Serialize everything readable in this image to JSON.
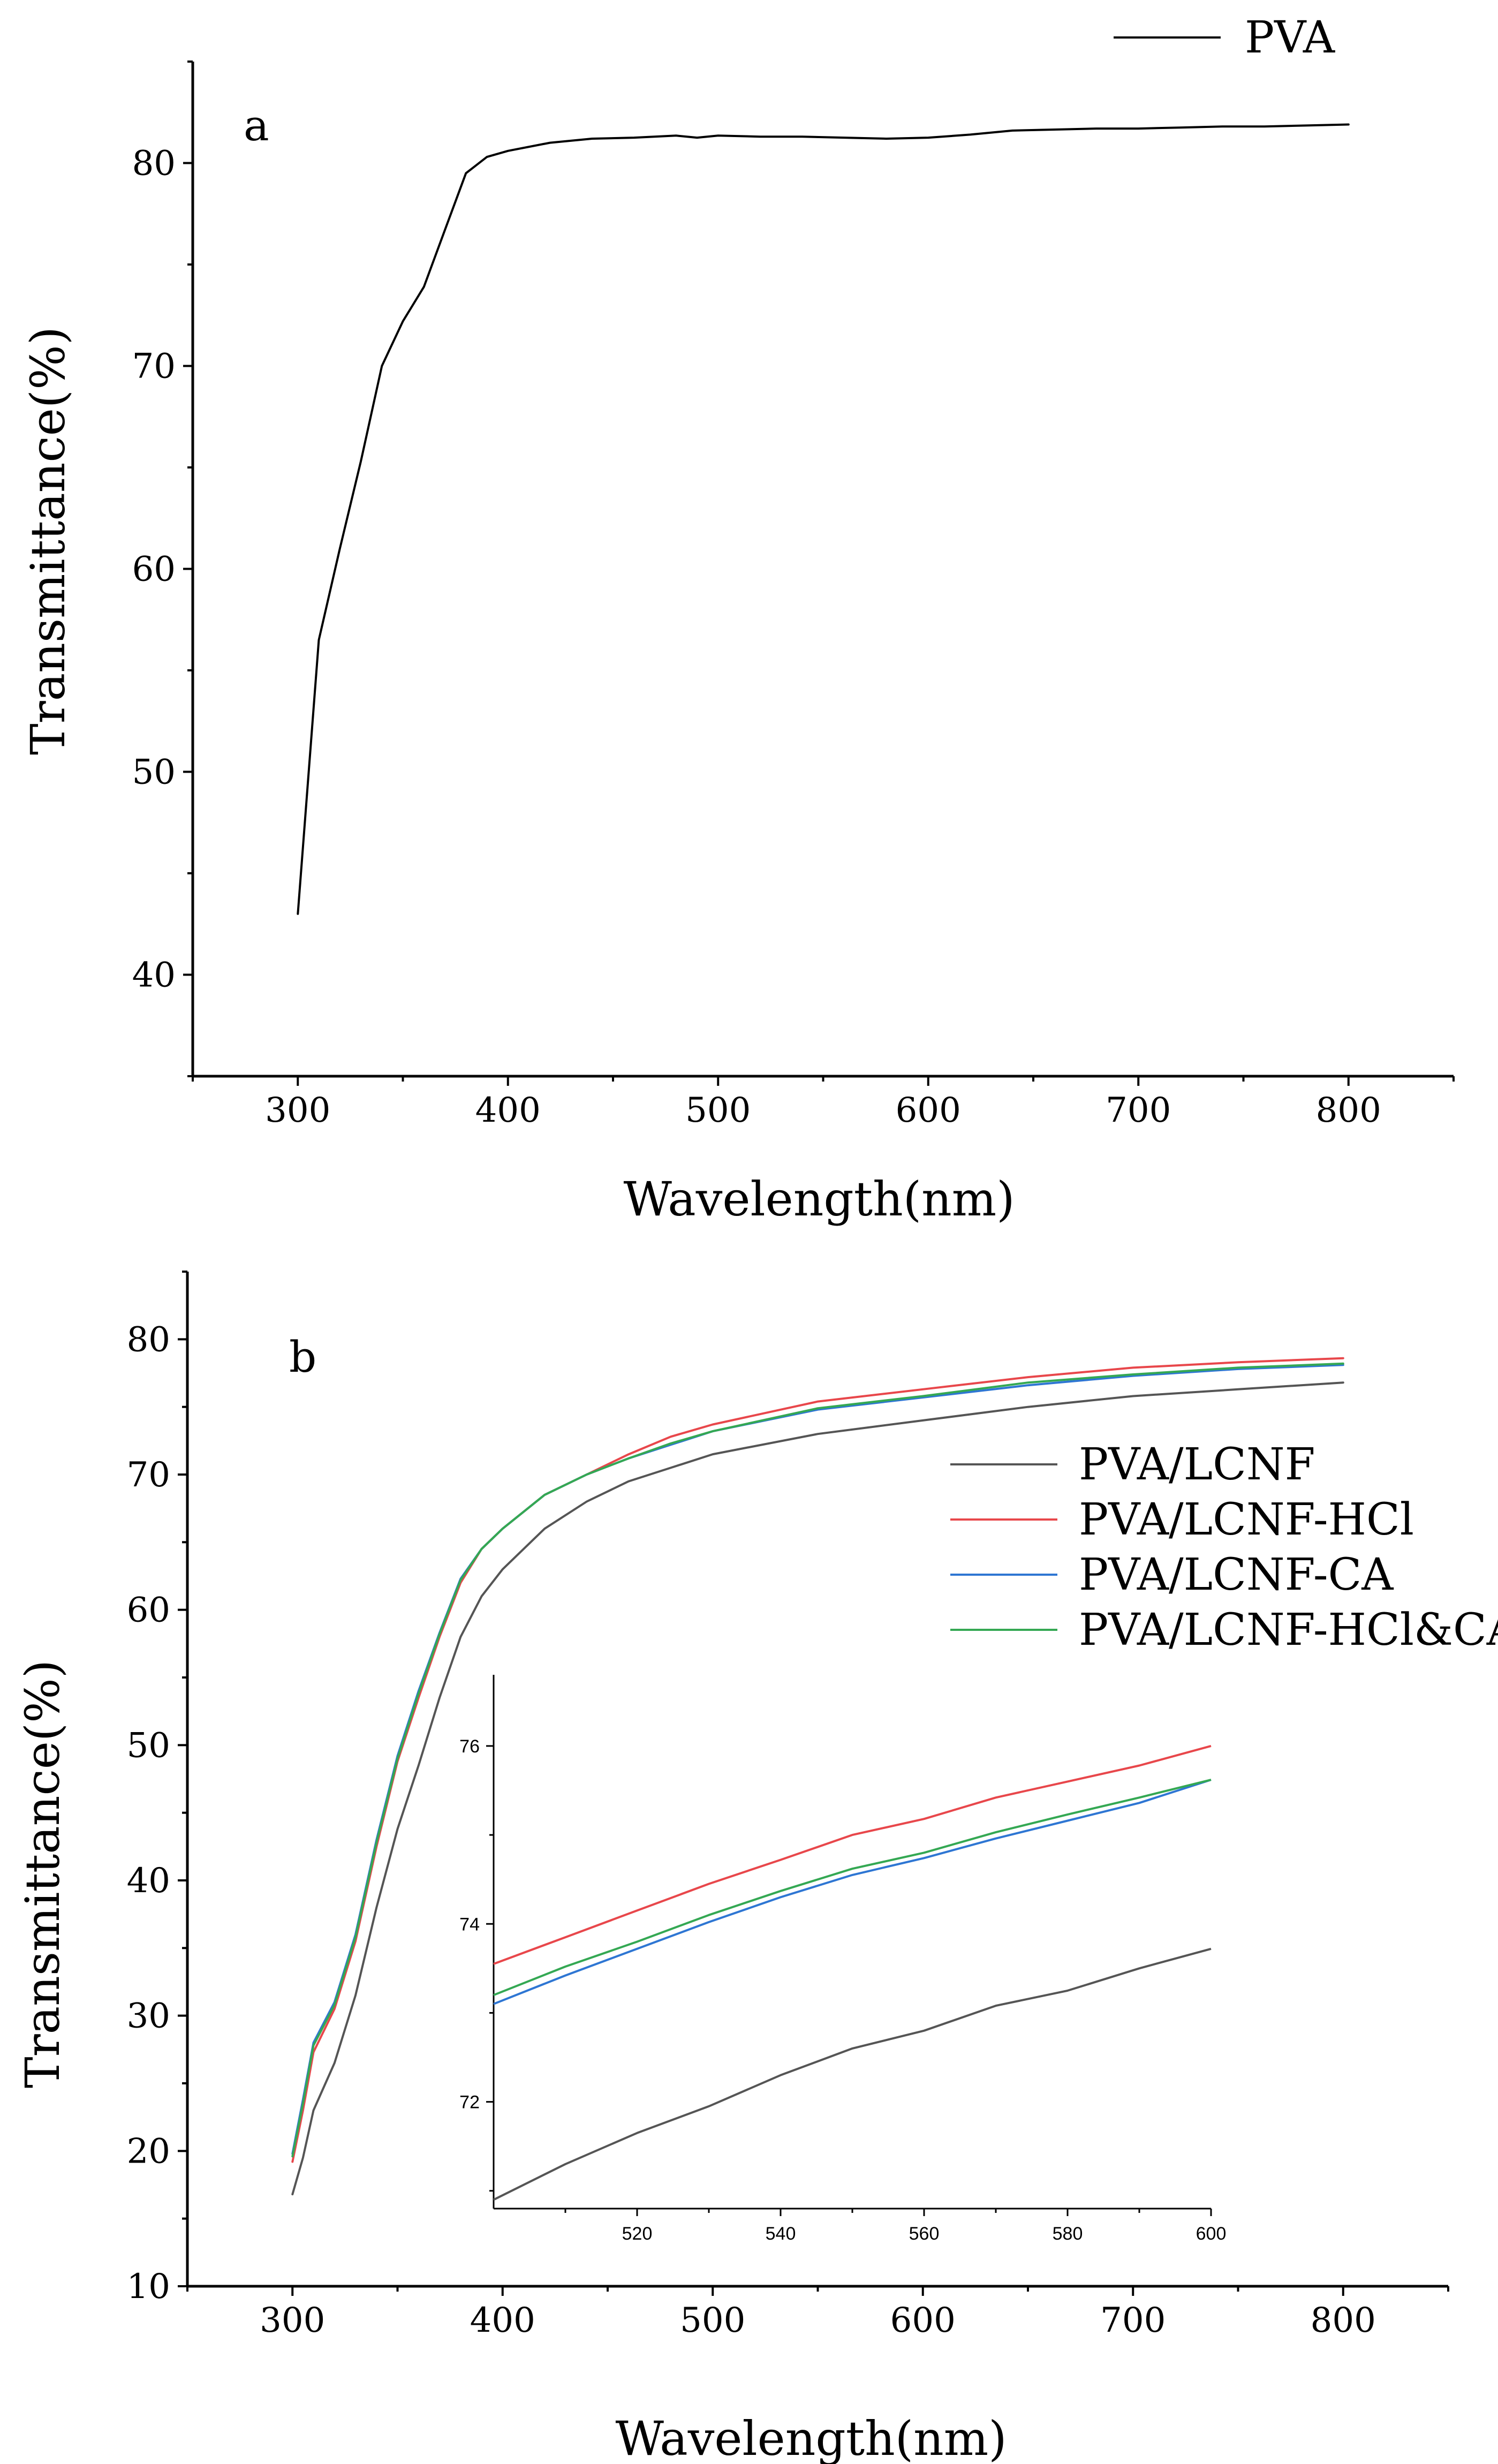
{
  "figure": {
    "panels": [
      "a",
      "b"
    ]
  },
  "chart_data": [
    {
      "id": "a",
      "type": "line",
      "panel_label": "a",
      "xlabel": "Wavelength(nm)",
      "ylabel": "Transmittance(%)",
      "xlim": [
        250,
        850
      ],
      "ylim": [
        35,
        85
      ],
      "xticks": [
        300,
        400,
        500,
        600,
        700,
        800
      ],
      "yticks": [
        40,
        50,
        60,
        70,
        80
      ],
      "legend_position": "top-right",
      "series": [
        {
          "name": "PVA",
          "color": "#000000",
          "x": [
            300,
            310,
            320,
            330,
            340,
            350,
            360,
            370,
            380,
            390,
            400,
            420,
            440,
            460,
            480,
            490,
            500,
            520,
            540,
            560,
            580,
            600,
            620,
            640,
            660,
            680,
            700,
            720,
            740,
            760,
            780,
            800
          ],
          "y": [
            43,
            56.5,
            61,
            65.3,
            70,
            72.2,
            73.9,
            76.7,
            79.5,
            80.3,
            80.6,
            81.0,
            81.2,
            81.25,
            81.35,
            81.25,
            81.35,
            81.3,
            81.3,
            81.25,
            81.2,
            81.25,
            81.4,
            81.6,
            81.65,
            81.7,
            81.7,
            81.75,
            81.8,
            81.8,
            81.85,
            81.9
          ]
        }
      ]
    },
    {
      "id": "b",
      "type": "line",
      "panel_label": "b",
      "xlabel": "Wavelength(nm)",
      "ylabel": "Transmittance(%)",
      "xlim": [
        250,
        850
      ],
      "ylim": [
        10,
        85
      ],
      "xticks": [
        300,
        400,
        500,
        600,
        700,
        800
      ],
      "yticks": [
        10,
        20,
        30,
        40,
        50,
        60,
        70,
        80
      ],
      "legend_position": "center-right",
      "series": [
        {
          "name": "PVA/LCNF",
          "color": "#555555",
          "x": [
            300,
            305,
            310,
            320,
            330,
            340,
            350,
            360,
            370,
            380,
            390,
            400,
            420,
            440,
            460,
            480,
            500,
            550,
            600,
            650,
            700,
            750,
            800
          ],
          "y": [
            16.8,
            19.5,
            23,
            26.5,
            31.5,
            38,
            43.8,
            48.5,
            53.5,
            58,
            61,
            63,
            66,
            68,
            69.5,
            70.5,
            71.5,
            73,
            74,
            75,
            75.8,
            76.3,
            76.8
          ]
        },
        {
          "name": "PVA/LCNF-HCl",
          "color": "#e8474b",
          "x": [
            300,
            305,
            310,
            320,
            330,
            340,
            350,
            360,
            370,
            380,
            390,
            400,
            420,
            440,
            460,
            480,
            500,
            550,
            600,
            650,
            700,
            750,
            800
          ],
          "y": [
            19.2,
            23,
            27.3,
            30.5,
            35.5,
            42.5,
            48.8,
            53.5,
            58,
            62,
            64.5,
            66,
            68.5,
            70,
            71.5,
            72.8,
            73.7,
            75.4,
            76.3,
            77.2,
            77.9,
            78.3,
            78.6
          ]
        },
        {
          "name": "PVA/LCNF-CA",
          "color": "#2e76d3",
          "x": [
            300,
            305,
            310,
            320,
            330,
            340,
            350,
            360,
            370,
            380,
            390,
            400,
            420,
            440,
            460,
            480,
            500,
            550,
            600,
            650,
            700,
            750,
            800
          ],
          "y": [
            19.8,
            23.8,
            28,
            31,
            36,
            43,
            49.2,
            54,
            58.3,
            62.3,
            64.5,
            66,
            68.5,
            70,
            71.2,
            72.2,
            73.2,
            74.8,
            75.7,
            76.6,
            77.3,
            77.8,
            78.1
          ]
        },
        {
          "name": "PVA/LCNF-HCl&CA",
          "color": "#34a853",
          "x": [
            300,
            305,
            310,
            320,
            330,
            340,
            350,
            360,
            370,
            380,
            390,
            400,
            420,
            440,
            460,
            480,
            500,
            550,
            600,
            650,
            700,
            750,
            800
          ],
          "y": [
            19.6,
            23.5,
            27.8,
            30.8,
            35.8,
            42.8,
            49,
            53.8,
            58.2,
            62.2,
            64.5,
            66,
            68.5,
            70,
            71.2,
            72.3,
            73.2,
            74.9,
            75.8,
            76.8,
            77.4,
            77.9,
            78.2
          ]
        }
      ],
      "inset": {
        "type": "line",
        "xlim": [
          500,
          600
        ],
        "ylim": [
          70.8,
          76.8
        ],
        "xticks": [
          520,
          540,
          560,
          580,
          600
        ],
        "yticks": [
          72,
          74,
          76
        ],
        "series": [
          {
            "name": "PVA/LCNF",
            "color": "#555555",
            "x": [
              500,
              510,
              520,
              530,
              540,
              550,
              560,
              570,
              580,
              590,
              600
            ],
            "y": [
              70.9,
              71.3,
              71.65,
              71.95,
              72.3,
              72.6,
              72.8,
              73.08,
              73.25,
              73.5,
              73.72
            ]
          },
          {
            "name": "PVA/LCNF-HCl",
            "color": "#e8474b",
            "x": [
              500,
              510,
              520,
              530,
              540,
              550,
              560,
              570,
              580,
              590,
              600
            ],
            "y": [
              73.55,
              73.85,
              74.15,
              74.45,
              74.72,
              75.0,
              75.18,
              75.42,
              75.6,
              75.78,
              76.0
            ]
          },
          {
            "name": "PVA/LCNF-CA",
            "color": "#2e76d3",
            "x": [
              500,
              510,
              520,
              530,
              540,
              550,
              560,
              570,
              580,
              590,
              600
            ],
            "y": [
              73.1,
              73.42,
              73.72,
              74.02,
              74.3,
              74.55,
              74.74,
              74.96,
              75.16,
              75.36,
              75.62
            ]
          },
          {
            "name": "PVA/LCNF-HCl&CA",
            "color": "#34a853",
            "x": [
              500,
              510,
              520,
              530,
              540,
              550,
              560,
              570,
              580,
              590,
              600
            ],
            "y": [
              73.2,
              73.52,
              73.8,
              74.1,
              74.37,
              74.62,
              74.8,
              75.03,
              75.23,
              75.42,
              75.62
            ]
          }
        ]
      }
    }
  ]
}
